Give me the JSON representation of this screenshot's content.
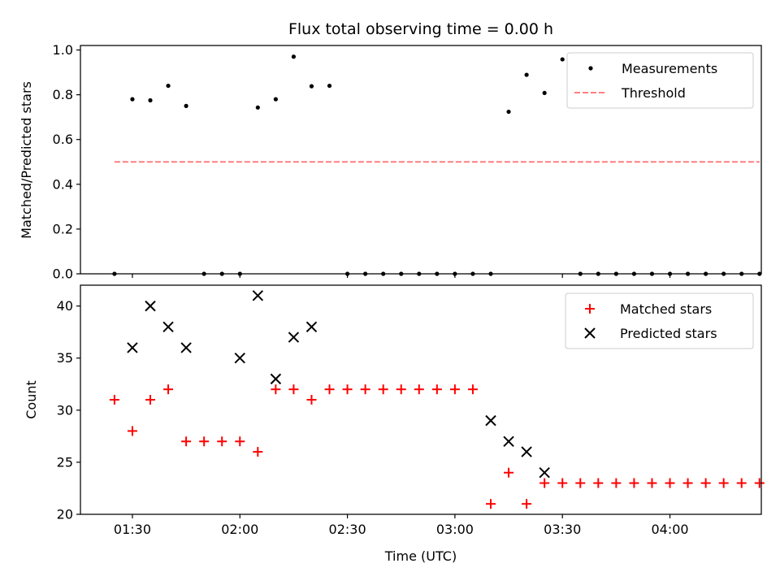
{
  "chart_data": {
    "title": "Flux total observing time = 0.00 h",
    "xlabel": "Time (UTC)",
    "x_ticks": [
      {
        "min": 90,
        "label": "01:30"
      },
      {
        "min": 120,
        "label": "02:00"
      },
      {
        "min": 150,
        "label": "02:30"
      },
      {
        "min": 180,
        "label": "03:00"
      },
      {
        "min": 210,
        "label": "03:30"
      },
      {
        "min": 240,
        "label": "04:00"
      }
    ],
    "xlim_min": [
      75.5,
      265.5
    ],
    "panels": [
      {
        "type": "scatter",
        "ylabel": "Matched/Predicted stars",
        "ylim": [
          0,
          1.02
        ],
        "yticks": [
          "0.0",
          "0.2",
          "0.4",
          "0.6",
          "0.8",
          "1.0"
        ],
        "ytick_values": [
          0,
          0.2,
          0.4,
          0.6,
          0.8,
          1.0
        ],
        "legend": {
          "position": "upper right",
          "entries": [
            {
              "label": "Measurements",
              "kind": "dot",
              "color": "#000000"
            },
            {
              "label": "Threshold",
              "kind": "dashed-line",
              "color": "#ff7f7f"
            }
          ]
        },
        "threshold": {
          "value": 0.5,
          "x_range": [
            85,
            265
          ]
        },
        "series": [
          {
            "name": "Measurements",
            "color": "#000000",
            "x": [
              85,
              90,
              95,
              100,
              105,
              110,
              115,
              120,
              125,
              130,
              135,
              140,
              145,
              150,
              155,
              160,
              165,
              170,
              175,
              180,
              185,
              190,
              195,
              200,
              205,
              210,
              215,
              220,
              225,
              230,
              235,
              240,
              245,
              250,
              255,
              260,
              265
            ],
            "y": [
              0,
              0.78,
              0.775,
              0.84,
              0.75,
              0,
              0,
              0,
              0.743,
              0.78,
              0.97,
              0.838,
              0.84,
              0,
              0,
              0,
              0,
              0,
              0,
              0,
              0,
              0,
              0.724,
              0.889,
              0.808,
              0.958,
              0,
              0,
              0,
              0,
              0,
              0,
              0,
              0,
              0,
              0,
              0
            ]
          }
        ]
      },
      {
        "type": "scatter",
        "ylabel": "Count",
        "ylim": [
          20,
          42
        ],
        "yticks": [
          "20",
          "25",
          "30",
          "35",
          "40"
        ],
        "ytick_values": [
          20,
          25,
          30,
          35,
          40
        ],
        "legend": {
          "position": "upper right",
          "entries": [
            {
              "label": "Matched stars",
              "kind": "plus",
              "color": "#ff0000"
            },
            {
              "label": "Predicted stars",
              "kind": "x",
              "color": "#000000"
            }
          ]
        },
        "series": [
          {
            "name": "Matched stars",
            "marker": "plus",
            "color": "#ff0000",
            "x": [
              85,
              90,
              95,
              100,
              105,
              110,
              115,
              120,
              125,
              130,
              135,
              140,
              145,
              150,
              155,
              160,
              165,
              170,
              175,
              180,
              185,
              190,
              195,
              200,
              205,
              210,
              215,
              220,
              225,
              230,
              235,
              240,
              245,
              250,
              255,
              260,
              265
            ],
            "y": [
              31,
              28,
              31,
              32,
              27,
              27,
              27,
              27,
              26,
              32,
              32,
              31,
              32,
              32,
              32,
              32,
              32,
              32,
              32,
              32,
              32,
              21,
              24,
              21,
              23,
              23,
              23,
              23,
              23,
              23,
              23,
              23,
              23,
              23,
              23,
              23,
              23
            ]
          },
          {
            "name": "Predicted stars",
            "marker": "x",
            "color": "#000000",
            "x": [
              90,
              95,
              100,
              105,
              120,
              125,
              130,
              135,
              140,
              190,
              195,
              200,
              205
            ],
            "y": [
              36,
              40,
              38,
              36,
              35,
              41,
              33,
              37,
              38,
              29,
              27,
              26,
              24
            ]
          }
        ]
      }
    ]
  }
}
